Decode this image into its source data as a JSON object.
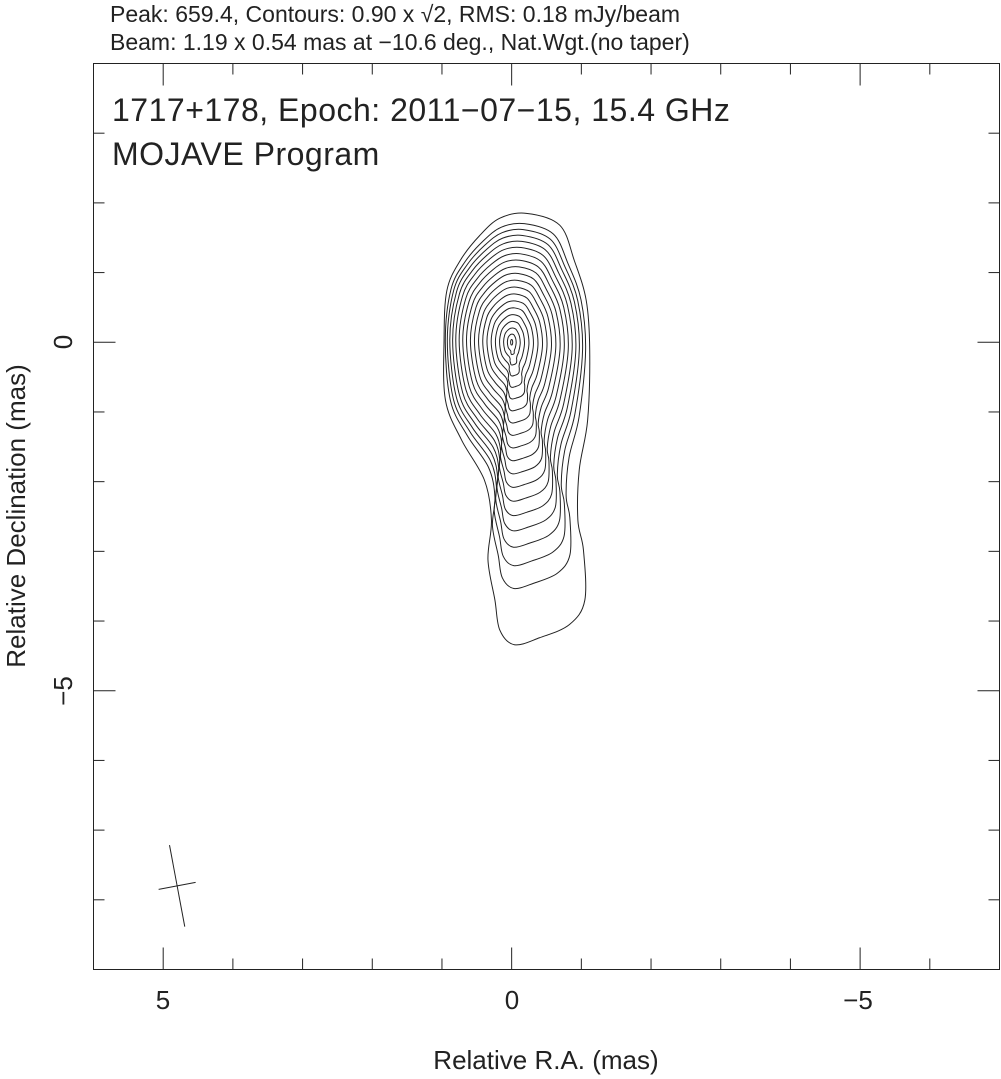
{
  "header": {
    "line1": "Peak: 659.4, Contours: 0.90 x √2, RMS: 0.18 mJy/beam",
    "line2": "Beam: 1.19 x 0.54 mas at −10.6 deg., Nat.Wgt.(no taper)"
  },
  "chart_data": {
    "type": "contour",
    "title": "1717+178, Epoch: 2011−07−15, 15.4 GHz",
    "subtitle": "MOJAVE Program",
    "xlabel": "Relative R.A. (mas)",
    "ylabel": "Relative Declination (mas)",
    "xlim": [
      6,
      -7
    ],
    "ylim": [
      -9,
      4
    ],
    "x_ticks_major": [
      5,
      0,
      -5
    ],
    "x_tick_labels": [
      "5",
      "0",
      "−5"
    ],
    "y_ticks_major": [
      0,
      -5
    ],
    "y_tick_labels": [
      "0",
      "−5"
    ],
    "minor_tick_step": 1,
    "peak": 659.4,
    "peak_position": [
      0,
      0
    ],
    "contour_base": 0.9,
    "contour_factor": "√2",
    "contour_levels_count": 20,
    "rms": 0.18,
    "units": "mJy/beam",
    "outer_contour_ra_dec": [
      [
        -0.21,
        1.85
      ],
      [
        -0.69,
        1.68
      ],
      [
        -0.9,
        1.17
      ],
      [
        -1.07,
        0.6
      ],
      [
        -1.12,
        -0.11
      ],
      [
        -1.09,
        -1.12
      ],
      [
        -0.97,
        -1.83
      ],
      [
        -0.95,
        -2.55
      ],
      [
        -1.03,
        -2.98
      ],
      [
        -1.05,
        -3.7
      ],
      [
        -0.83,
        -4.05
      ],
      [
        -0.4,
        -4.24
      ],
      [
        -0.04,
        -4.34
      ],
      [
        0.17,
        -4.13
      ],
      [
        0.24,
        -3.7
      ],
      [
        0.34,
        -3.12
      ],
      [
        0.29,
        -2.55
      ],
      [
        0.39,
        -1.98
      ],
      [
        0.72,
        -1.4
      ],
      [
        0.95,
        -0.83
      ],
      [
        0.97,
        0.03
      ],
      [
        0.93,
        0.74
      ],
      [
        0.74,
        1.17
      ],
      [
        0.46,
        1.53
      ],
      [
        0.17,
        1.78
      ]
    ],
    "beam": {
      "major_mas": 1.19,
      "minor_mas": 0.54,
      "pa_deg": -10.6,
      "position_ra_dec": [
        4.8,
        -7.8
      ]
    },
    "grid": false,
    "line_color": "#222222"
  }
}
